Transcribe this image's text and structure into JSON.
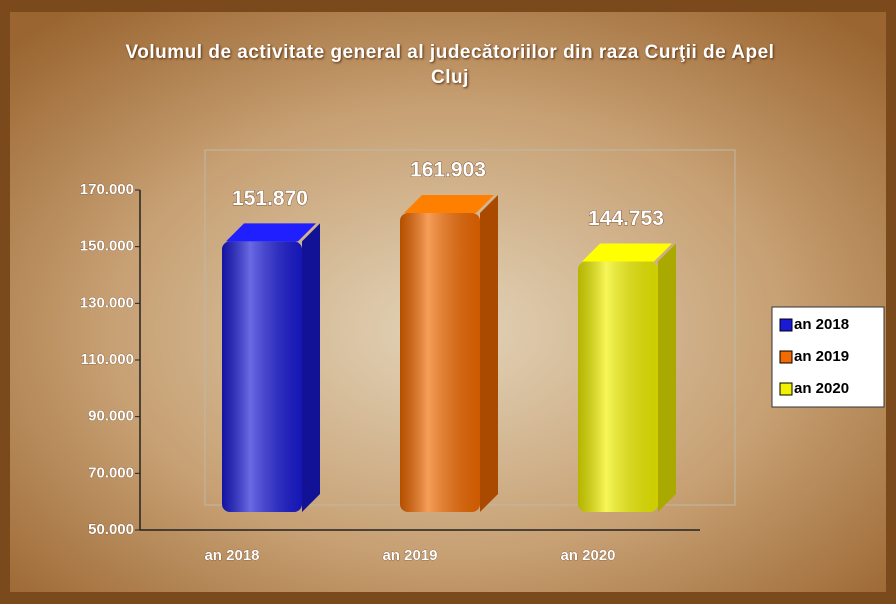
{
  "chart_data": {
    "type": "bar",
    "title": "Volumul de activitate general al judecătoriilor din raza Curţii de Apel Cluj",
    "categories": [
      "an 2018",
      "an 2019",
      "an 2020"
    ],
    "values": [
      151870,
      161903,
      144753
    ],
    "value_labels": [
      "151.870",
      "161.903",
      "144.753"
    ],
    "colors": [
      "#1a1ad6",
      "#f26a00",
      "#f2f200"
    ],
    "ylim": [
      50000,
      170000
    ],
    "yticks": [
      {
        "value": 50000,
        "label": "50.000"
      },
      {
        "value": 70000,
        "label": "70.000"
      },
      {
        "value": 90000,
        "label": "90.000"
      },
      {
        "value": 110000,
        "label": "110.000"
      },
      {
        "value": 130000,
        "label": "130.000"
      },
      {
        "value": 150000,
        "label": "150.000"
      },
      {
        "value": 170000,
        "label": "170.000"
      }
    ],
    "legend": "right"
  }
}
